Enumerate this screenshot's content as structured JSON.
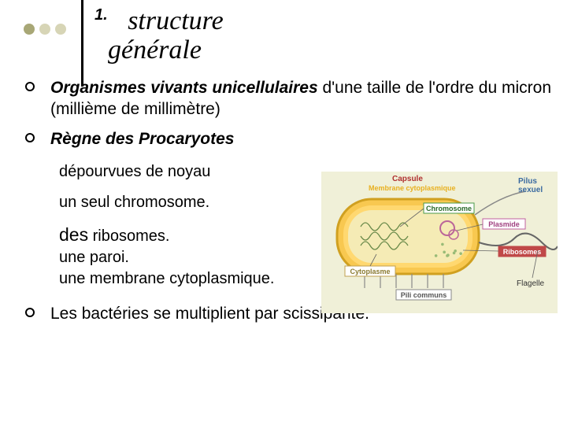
{
  "dots": [
    "#a8a776",
    "#d7d5b6",
    "#d7d5b6"
  ],
  "title": {
    "num": "1.",
    "line1": "structure",
    "line2": "générale"
  },
  "bullets": {
    "b1_pre": "Organismes vivants unicellulaires",
    "b1_post": " d'une taille de l'ordre du micron  (millième de millimètre)",
    "b2": "Règne des Procaryotes",
    "b3": "Les bactéries se multiplient par scissiparité."
  },
  "subs": {
    "s1": "dépourvues de noyau",
    "s2": "un seul chromosome.",
    "s3a": "des",
    "s3b": " ribosomes.",
    "s4": "une paroi.",
    "s5": "une membrane cytoplasmique."
  },
  "diagram": {
    "bg": "#f0f0d8",
    "capsule_fill": "#f8c850",
    "capsule_stroke": "#d0a020",
    "wall_fill": "#ffd870",
    "inner_fill": "#f5ebb5",
    "chrom_color": "#6a8a4a",
    "plasmid_color": "#bb6699",
    "ribo_color": "#99bb77",
    "pili_color": "#888888",
    "flagelle_color": "#666666",
    "labels": {
      "capsule": "Capsule",
      "capsule_color": "#b03030",
      "membrane": "Membrane cytoplasmique",
      "membrane_color": "#e8b020",
      "chromosome": "Chromosome",
      "plasmide": "Plasmide",
      "cytoplasme": "Cytoplasme",
      "pili": "Pili communs",
      "pilus": "Pilus sexuel",
      "pilus_color": "#3a6aa0",
      "flagelle": "Flagelle",
      "ribosomes": "Ribosomes",
      "ribo_bg": "#c04848",
      "chrom_border": "#4a9a4a",
      "plasmide_border": "#c060a0",
      "cyto_border": "#c0a050"
    }
  }
}
